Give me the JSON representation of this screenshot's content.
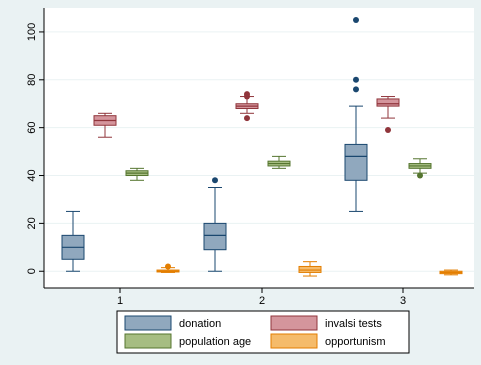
{
  "chart_data": {
    "type": "boxplot",
    "categories": [
      "1",
      "2",
      "3"
    ],
    "y_ticks": [
      "0",
      "20",
      "40",
      "60",
      "80",
      "100"
    ],
    "ylim": [
      -7,
      110
    ],
    "grid": "horizontal",
    "legend_placement": "bottom-center",
    "title": "",
    "xlabel": "",
    "ylabel": "",
    "colors": {
      "plot_background": "#ffffff",
      "outer_background": "#eaf2f3",
      "gridline": "#eaf2f3",
      "axis": "#000000",
      "whisker": "#1a476f",
      "outlier": "#1a476f"
    },
    "series": [
      {
        "name": "donation",
        "fill": "#90a8be",
        "stroke": "#1a476f",
        "boxes": [
          {
            "category": "1",
            "whisker_low": 0,
            "q1": 5,
            "median": 10,
            "q3": 15,
            "whisker_high": 25,
            "outliers": []
          },
          {
            "category": "2",
            "whisker_low": 0,
            "q1": 9,
            "median": 15,
            "q3": 20,
            "whisker_high": 35,
            "outliers": [
              38
            ]
          },
          {
            "category": "3",
            "whisker_low": 25,
            "q1": 38,
            "median": 48,
            "q3": 53,
            "whisker_high": 69,
            "outliers": [
              76,
              80,
              105
            ]
          }
        ]
      },
      {
        "name": "invalsi tests",
        "fill": "#d4959c",
        "stroke": "#90353b",
        "boxes": [
          {
            "category": "1",
            "whisker_low": 56,
            "q1": 61,
            "median": 63,
            "q3": 65,
            "whisker_high": 66,
            "outliers": []
          },
          {
            "category": "2",
            "whisker_low": 66,
            "q1": 68,
            "median": 69,
            "q3": 70,
            "whisker_high": 73,
            "outliers": [
              64,
              73,
              74
            ]
          },
          {
            "category": "3",
            "whisker_low": 64,
            "q1": 69,
            "median": 70,
            "q3": 72,
            "whisker_high": 73,
            "outliers": [
              59
            ]
          }
        ]
      },
      {
        "name": "population age",
        "fill": "#a6bd82",
        "stroke": "#55752f",
        "boxes": [
          {
            "category": "1",
            "whisker_low": 38,
            "q1": 40,
            "median": 41,
            "q3": 42,
            "whisker_high": 43,
            "outliers": []
          },
          {
            "category": "2",
            "whisker_low": 43,
            "q1": 44,
            "median": 45,
            "q3": 46,
            "whisker_high": 48,
            "outliers": []
          },
          {
            "category": "3",
            "whisker_low": 41,
            "q1": 43,
            "median": 44,
            "q3": 45,
            "whisker_high": 47,
            "outliers": [
              40
            ]
          }
        ]
      },
      {
        "name": "opportunism",
        "fill": "#f5bb6b",
        "stroke": "#e37e00",
        "boxes": [
          {
            "category": "1",
            "whisker_low": -0.5,
            "q1": -0.3,
            "median": 0,
            "q3": 0.5,
            "whisker_high": 1.5,
            "outliers": [
              2
            ]
          },
          {
            "category": "2",
            "whisker_low": -2,
            "q1": -0.5,
            "median": 0.5,
            "q3": 2,
            "whisker_high": 4,
            "outliers": []
          },
          {
            "category": "3",
            "whisker_low": -1.5,
            "q1": -1,
            "median": -0.5,
            "q3": 0,
            "whisker_high": 0.5,
            "outliers": []
          }
        ]
      }
    ]
  }
}
